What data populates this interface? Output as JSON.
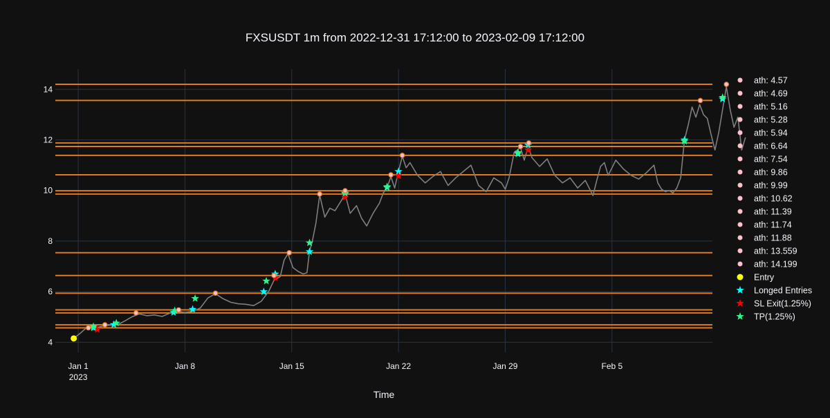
{
  "chart_data": {
    "type": "line",
    "title": "FXSUSDT 1m from 2022-12-31 17:12:00 to 2023-02-09 17:12:00",
    "xlabel": "Time",
    "ylabel": "",
    "x_range": [
      "2022-12-30T12:00",
      "2023-02-11T14:00"
    ],
    "ylim": [
      3.6,
      14.8
    ],
    "y_ticks": [
      4,
      6,
      8,
      10,
      12,
      14
    ],
    "x_ticks": [
      {
        "date": "2023-01-01",
        "label": "Jan 1",
        "label2": "2023"
      },
      {
        "date": "2023-01-08",
        "label": "Jan 8",
        "label2": ""
      },
      {
        "date": "2023-01-15",
        "label": "Jan 15",
        "label2": ""
      },
      {
        "date": "2023-01-22",
        "label": "Jan 22",
        "label2": ""
      },
      {
        "date": "2023-01-29",
        "label": "Jan 29",
        "label2": ""
      },
      {
        "date": "2023-02-05",
        "label": "Feb 5",
        "label2": ""
      }
    ],
    "grid": true,
    "legend_position": "right",
    "colors": {
      "background": "#111111",
      "grid": "#283442",
      "price": "#7f7f7f",
      "ath_line": "#e07b1e",
      "ath_marker": "#ffc0cb",
      "entry": "#ffff00",
      "longed": "#00ffff",
      "sl": "#ff0000",
      "tp": "#2ef58a"
    },
    "price_series": {
      "name": "",
      "points": [
        [
          "2022-12-31T17:00",
          4.15
        ],
        [
          "2023-01-01T03:00",
          4.35
        ],
        [
          "2023-01-01T12:00",
          4.55
        ],
        [
          "2023-01-01T22:00",
          4.58
        ],
        [
          "2023-01-02T08:00",
          4.6
        ],
        [
          "2023-01-02T18:00",
          4.66
        ],
        [
          "2023-01-03T06:00",
          4.68
        ],
        [
          "2023-01-03T16:00",
          4.72
        ],
        [
          "2023-01-04T02:00",
          4.85
        ],
        [
          "2023-01-04T12:00",
          5.0
        ],
        [
          "2023-01-05T00:00",
          5.12
        ],
        [
          "2023-01-05T12:00",
          5.05
        ],
        [
          "2023-01-06T00:00",
          5.08
        ],
        [
          "2023-01-06T12:00",
          5.02
        ],
        [
          "2023-01-07T00:00",
          5.15
        ],
        [
          "2023-01-07T12:00",
          5.22
        ],
        [
          "2023-01-08T00:00",
          5.18
        ],
        [
          "2023-01-08T12:00",
          5.22
        ],
        [
          "2023-01-09T00:00",
          5.35
        ],
        [
          "2023-01-09T12:00",
          5.75
        ],
        [
          "2023-01-10T00:00",
          5.92
        ],
        [
          "2023-01-10T12:00",
          5.72
        ],
        [
          "2023-01-11T00:00",
          5.58
        ],
        [
          "2023-01-11T12:00",
          5.52
        ],
        [
          "2023-01-12T00:00",
          5.5
        ],
        [
          "2023-01-12T12:00",
          5.45
        ],
        [
          "2023-01-13T00:00",
          5.62
        ],
        [
          "2023-01-13T12:00",
          6.02
        ],
        [
          "2023-01-13T20:00",
          6.45
        ],
        [
          "2023-01-14T06:00",
          6.6
        ],
        [
          "2023-01-14T12:00",
          7.25
        ],
        [
          "2023-01-14T18:00",
          7.5
        ],
        [
          "2023-01-15T02:00",
          6.95
        ],
        [
          "2023-01-15T10:00",
          6.8
        ],
        [
          "2023-01-15T18:00",
          6.7
        ],
        [
          "2023-01-16T00:00",
          6.75
        ],
        [
          "2023-01-16T04:00",
          7.6
        ],
        [
          "2023-01-16T08:00",
          7.95
        ],
        [
          "2023-01-16T14:00",
          8.7
        ],
        [
          "2023-01-16T20:00",
          9.82
        ],
        [
          "2023-01-17T04:00",
          8.95
        ],
        [
          "2023-01-17T12:00",
          9.3
        ],
        [
          "2023-01-17T20:00",
          9.2
        ],
        [
          "2023-01-18T06:00",
          9.6
        ],
        [
          "2023-01-18T12:00",
          9.85
        ],
        [
          "2023-01-18T20:00",
          9.1
        ],
        [
          "2023-01-19T06:00",
          9.4
        ],
        [
          "2023-01-19T14:00",
          8.9
        ],
        [
          "2023-01-19T22:00",
          8.6
        ],
        [
          "2023-01-20T08:00",
          9.1
        ],
        [
          "2023-01-20T18:00",
          9.5
        ],
        [
          "2023-01-21T00:00",
          9.9
        ],
        [
          "2023-01-21T06:00",
          10.1
        ],
        [
          "2023-01-21T12:00",
          10.55
        ],
        [
          "2023-01-21T18:00",
          10.1
        ],
        [
          "2023-01-22T00:00",
          10.75
        ],
        [
          "2023-01-22T06:00",
          11.35
        ],
        [
          "2023-01-22T12:00",
          10.9
        ],
        [
          "2023-01-22T18:00",
          11.1
        ],
        [
          "2023-01-23T06:00",
          10.6
        ],
        [
          "2023-01-23T18:00",
          10.3
        ],
        [
          "2023-01-24T06:00",
          10.55
        ],
        [
          "2023-01-24T18:00",
          10.75
        ],
        [
          "2023-01-25T06:00",
          10.2
        ],
        [
          "2023-01-25T18:00",
          10.5
        ],
        [
          "2023-01-26T06:00",
          10.75
        ],
        [
          "2023-01-26T18:00",
          11.0
        ],
        [
          "2023-01-27T06:00",
          10.2
        ],
        [
          "2023-01-27T18:00",
          9.95
        ],
        [
          "2023-01-28T06:00",
          10.5
        ],
        [
          "2023-01-28T18:00",
          10.3
        ],
        [
          "2023-01-29T00:00",
          10.05
        ],
        [
          "2023-01-29T06:00",
          10.5
        ],
        [
          "2023-01-29T14:00",
          11.5
        ],
        [
          "2023-01-30T00:00",
          11.7
        ],
        [
          "2023-01-30T06:00",
          11.2
        ],
        [
          "2023-01-30T12:00",
          11.75
        ],
        [
          "2023-01-30T18:00",
          11.3
        ],
        [
          "2023-01-31T06:00",
          10.95
        ],
        [
          "2023-01-31T18:00",
          11.25
        ],
        [
          "2023-02-01T06:00",
          10.6
        ],
        [
          "2023-02-01T18:00",
          10.3
        ],
        [
          "2023-02-02T06:00",
          10.5
        ],
        [
          "2023-02-02T18:00",
          10.1
        ],
        [
          "2023-02-03T06:00",
          10.4
        ],
        [
          "2023-02-03T18:00",
          9.8
        ],
        [
          "2023-02-04T00:00",
          10.4
        ],
        [
          "2023-02-04T06:00",
          10.95
        ],
        [
          "2023-02-04T12:00",
          11.1
        ],
        [
          "2023-02-04T18:00",
          10.6
        ],
        [
          "2023-02-05T06:00",
          11.2
        ],
        [
          "2023-02-05T18:00",
          10.85
        ],
        [
          "2023-02-06T06:00",
          10.6
        ],
        [
          "2023-02-06T18:00",
          10.45
        ],
        [
          "2023-02-07T06:00",
          10.7
        ],
        [
          "2023-02-07T18:00",
          11.0
        ],
        [
          "2023-02-08T00:00",
          10.3
        ],
        [
          "2023-02-08T06:00",
          10.05
        ],
        [
          "2023-02-08T12:00",
          9.95
        ],
        [
          "2023-02-08T18:00",
          10.0
        ],
        [
          "2023-02-09T00:00",
          9.9
        ],
        [
          "2023-02-09T06:00",
          10.1
        ],
        [
          "2023-02-09T12:00",
          10.5
        ],
        [
          "2023-02-09T18:00",
          12.0
        ],
        [
          "2023-02-10T00:00",
          12.6
        ],
        [
          "2023-02-10T06:00",
          13.3
        ],
        [
          "2023-02-10T12:00",
          12.9
        ],
        [
          "2023-02-10T18:00",
          13.4
        ],
        [
          "2023-02-11T00:00",
          13.0
        ],
        [
          "2023-02-11T06:00",
          12.85
        ],
        [
          "2023-02-11T12:00",
          12.2
        ],
        [
          "2023-02-11T18:00",
          11.6
        ],
        [
          "2023-02-12T00:00",
          12.3
        ],
        [
          "2023-02-12T06:00",
          13.2
        ],
        [
          "2023-02-12T12:00",
          14.1
        ],
        [
          "2023-02-12T18:00",
          13.2
        ],
        [
          "2023-02-13T00:00",
          12.5
        ],
        [
          "2023-02-13T06:00",
          12.9
        ],
        [
          "2023-02-13T12:00",
          11.6
        ],
        [
          "2023-02-13T18:00",
          12.1
        ]
      ]
    },
    "ath_levels": [
      4.57,
      4.69,
      5.16,
      5.28,
      5.94,
      6.64,
      7.54,
      9.86,
      9.99,
      10.62,
      11.39,
      11.74,
      11.88,
      13.559,
      14.199
    ],
    "series": [
      {
        "name": "ath: 4.57",
        "kind": "ath",
        "points": [
          [
            "2023-01-01T16:00",
            4.57
          ]
        ]
      },
      {
        "name": "ath: 4.69",
        "kind": "ath",
        "points": [
          [
            "2023-01-02T18:00",
            4.69
          ]
        ]
      },
      {
        "name": "ath: 5.16",
        "kind": "ath",
        "points": [
          [
            "2023-01-04T19:00",
            5.16
          ]
        ]
      },
      {
        "name": "ath: 5.28",
        "kind": "ath",
        "points": [
          [
            "2023-01-07T14:00",
            5.28
          ]
        ]
      },
      {
        "name": "ath: 5.94",
        "kind": "ath",
        "points": [
          [
            "2023-01-10T00:00",
            5.94
          ]
        ]
      },
      {
        "name": "ath: 6.64",
        "kind": "ath",
        "points": [
          [
            "2023-01-13T20:00",
            6.64
          ]
        ]
      },
      {
        "name": "ath: 7.54",
        "kind": "ath",
        "points": [
          [
            "2023-01-14T20:00",
            7.54
          ]
        ]
      },
      {
        "name": "ath: 9.86",
        "kind": "ath",
        "points": [
          [
            "2023-01-16T20:00",
            9.86
          ]
        ]
      },
      {
        "name": "ath: 9.99",
        "kind": "ath",
        "points": [
          [
            "2023-01-18T12:00",
            9.99
          ]
        ]
      },
      {
        "name": "ath: 10.62",
        "kind": "ath",
        "points": [
          [
            "2023-01-21T12:00",
            10.62
          ]
        ]
      },
      {
        "name": "ath: 11.39",
        "kind": "ath",
        "points": [
          [
            "2023-01-22T06:00",
            11.39
          ]
        ]
      },
      {
        "name": "ath: 11.74",
        "kind": "ath",
        "points": [
          [
            "2023-01-30T00:00",
            11.74
          ]
        ]
      },
      {
        "name": "ath: 11.88",
        "kind": "ath",
        "points": [
          [
            "2023-01-30T13:00",
            11.88
          ]
        ]
      },
      {
        "name": "ath: 13.559",
        "kind": "ath",
        "points": [
          [
            "2023-02-10T19:00",
            13.559
          ]
        ]
      },
      {
        "name": "ath: 14.199",
        "kind": "ath",
        "points": [
          [
            "2023-02-12T12:00",
            14.199
          ]
        ]
      },
      {
        "name": "Entry",
        "kind": "entry",
        "points": [
          [
            "2022-12-31T17:00",
            4.15
          ]
        ]
      },
      {
        "name": "Longed Entries",
        "kind": "longed",
        "points": [
          [
            "2023-01-02T00:00",
            4.57
          ],
          [
            "2023-01-03T08:00",
            4.7
          ],
          [
            "2023-01-07T06:00",
            5.18
          ],
          [
            "2023-01-08T12:00",
            5.3
          ],
          [
            "2023-01-13T04:00",
            6.0
          ],
          [
            "2023-01-13T22:00",
            6.7
          ],
          [
            "2023-01-16T04:00",
            7.58
          ],
          [
            "2023-01-18T12:00",
            9.87
          ],
          [
            "2023-01-21T06:00",
            10.12
          ],
          [
            "2023-01-22T00:00",
            10.75
          ],
          [
            "2023-01-29T20:00",
            11.45
          ],
          [
            "2023-01-30T12:00",
            11.8
          ],
          [
            "2023-02-09T18:00",
            12.0
          ],
          [
            "2023-02-12T06:00",
            13.62
          ]
        ]
      },
      {
        "name": "SL Exit(1.25%)",
        "kind": "sl",
        "points": [
          [
            "2023-01-02T06:00",
            4.51
          ],
          [
            "2023-01-13T22:00",
            6.55
          ],
          [
            "2023-01-18T12:00",
            9.74
          ],
          [
            "2023-01-22T00:00",
            10.58
          ],
          [
            "2023-01-30T12:00",
            11.6
          ]
        ]
      },
      {
        "name": "TP(1.25%)",
        "kind": "tp",
        "points": [
          [
            "2023-01-02T00:00",
            4.62
          ],
          [
            "2023-01-03T12:00",
            4.76
          ],
          [
            "2023-01-07T08:00",
            5.25
          ],
          [
            "2023-01-08T16:00",
            5.73
          ],
          [
            "2023-01-13T08:00",
            6.42
          ],
          [
            "2023-01-16T04:00",
            7.93
          ],
          [
            "2023-01-18T12:00",
            9.9
          ],
          [
            "2023-01-21T06:00",
            10.15
          ],
          [
            "2023-01-29T20:00",
            11.5
          ],
          [
            "2023-02-09T18:00",
            11.95
          ],
          [
            "2023-02-12T06:00",
            13.68
          ]
        ]
      }
    ]
  }
}
